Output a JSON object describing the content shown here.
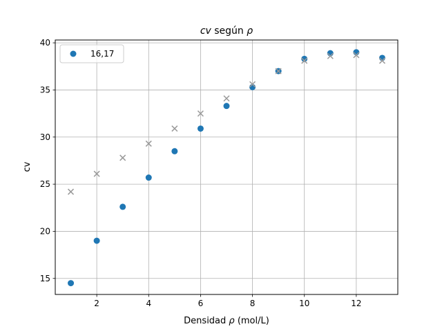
{
  "chart_data": {
    "type": "scatter",
    "title": {
      "pre": "",
      "italic1": "cv",
      "mid": " según ",
      "italic2": "ρ",
      "post": ""
    },
    "xlabel": {
      "pre": "Densidad ",
      "italic": "ρ",
      "post": " (mol/L)"
    },
    "ylabel": "cv",
    "xlim": [
      0.4,
      13.6
    ],
    "ylim": [
      13.3,
      40.3
    ],
    "xticks": [
      2,
      4,
      6,
      8,
      10,
      12
    ],
    "yticks": [
      15,
      20,
      25,
      30,
      35,
      40
    ],
    "grid": true,
    "legend_position": "top-left",
    "series": [
      {
        "name": "16,17",
        "marker": "circle",
        "color": "#1f77b4",
        "x": [
          1,
          2,
          3,
          4,
          5,
          6,
          7,
          8,
          9,
          10,
          11,
          12,
          13
        ],
        "y": [
          14.5,
          19.0,
          22.6,
          25.7,
          28.5,
          30.9,
          33.3,
          35.3,
          37.0,
          38.3,
          38.9,
          39.0,
          38.4
        ]
      },
      {
        "marker": "x",
        "color": "#999999",
        "x": [
          1,
          2,
          3,
          4,
          5,
          6,
          7,
          8,
          9,
          10,
          11,
          12,
          13
        ],
        "y": [
          24.2,
          26.1,
          27.8,
          29.3,
          30.9,
          32.5,
          34.1,
          35.6,
          37.0,
          38.1,
          38.6,
          38.7,
          38.1
        ]
      }
    ]
  }
}
